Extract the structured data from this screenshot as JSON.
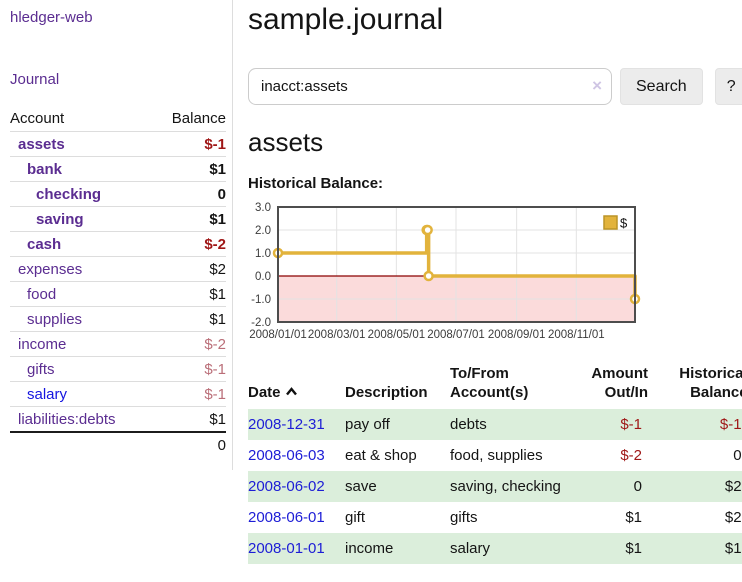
{
  "sidebar": {
    "app_title": "hledger-web",
    "journal_link": "Journal",
    "accounts": {
      "header_account": "Account",
      "header_balance": "Balance",
      "rows": [
        {
          "name": "assets",
          "indent": 1,
          "bold": true,
          "balance": "$-1",
          "neg": "strong"
        },
        {
          "name": "bank",
          "indent": 2,
          "bold": true,
          "balance": "$1"
        },
        {
          "name": "checking",
          "indent": 3,
          "bold": true,
          "balance": "0"
        },
        {
          "name": "saving",
          "indent": 3,
          "bold": true,
          "balance": "$1"
        },
        {
          "name": "cash",
          "indent": 2,
          "bold": true,
          "balance": "$-2",
          "neg": "strong"
        },
        {
          "name": "expenses",
          "indent": 1,
          "bold": false,
          "balance": "$2"
        },
        {
          "name": "food",
          "indent": 2,
          "bold": false,
          "balance": "$1"
        },
        {
          "name": "supplies",
          "indent": 2,
          "bold": false,
          "balance": "$1"
        },
        {
          "name": "income",
          "indent": 1,
          "bold": false,
          "balance": "$-2",
          "neg": "soft"
        },
        {
          "name": "gifts",
          "indent": 2,
          "bold": false,
          "balance": "$-1",
          "neg": "soft"
        },
        {
          "name": "salary",
          "indent": 2,
          "bold": false,
          "balance": "$-1",
          "neg": "soft",
          "link": "blue"
        },
        {
          "name": "liabilities:debts",
          "indent": 1,
          "bold": false,
          "balance": "$1"
        }
      ],
      "total": "0"
    }
  },
  "main": {
    "title": "sample.journal",
    "account_heading": "assets"
  },
  "search": {
    "query": "inacct:assets",
    "clear_icon": "×",
    "button_label": "Search",
    "help_label": "?"
  },
  "chart_data": {
    "type": "line",
    "step": true,
    "title": "Historical Balance:",
    "series": [
      {
        "name": "$",
        "color": "#e2b33c",
        "marker_fill": "#ffffff",
        "points": [
          [
            "2008-01-01",
            1
          ],
          [
            "2008-06-01",
            2
          ],
          [
            "2008-06-02",
            2
          ],
          [
            "2008-06-03",
            0
          ],
          [
            "2008-12-31",
            -1
          ]
        ]
      }
    ],
    "x_range": [
      "2008-01-01",
      "2008-12-31"
    ],
    "ylim": [
      -2,
      3
    ],
    "y_ticks": [
      3.0,
      2.0,
      1.0,
      0.0,
      -1.0,
      -2.0
    ],
    "x_ticks": [
      {
        "date": "2008-01-01",
        "label": "2008/01/01"
      },
      {
        "date": "2008-03-01",
        "label": "2008/03/01"
      },
      {
        "date": "2008-05-01",
        "label": "2008/05/01"
      },
      {
        "date": "2008-07-01",
        "label": "2008/07/01"
      },
      {
        "date": "2008-09-01",
        "label": "2008/09/01"
      },
      {
        "date": "2008-11-01",
        "label": "2008/11/01"
      }
    ],
    "negative_region_color": "#fbdbdb",
    "zero_line_color": "#8b0000",
    "grid": true,
    "legend_position": "top-right"
  },
  "register": {
    "headers": {
      "date": "Date",
      "description": "Description",
      "accounts": "To/From Account(s)",
      "amount": "Amount Out/In",
      "balance": "Historical Balance"
    },
    "rows": [
      {
        "date": "2008-12-31",
        "description": "pay off",
        "accounts": "debts",
        "amount": "$-1",
        "amount_neg": true,
        "balance": "$-1",
        "balance_neg": true
      },
      {
        "date": "2008-06-03",
        "description": "eat & shop",
        "accounts": "food, supplies",
        "amount": "$-2",
        "amount_neg": true,
        "balance": "0",
        "balance_neg": false
      },
      {
        "date": "2008-06-02",
        "description": "save",
        "accounts": "saving, checking",
        "amount": "0",
        "amount_neg": false,
        "balance": "$2",
        "balance_neg": false
      },
      {
        "date": "2008-06-01",
        "description": "gift",
        "accounts": "gifts",
        "amount": "$1",
        "amount_neg": false,
        "balance": "$2",
        "balance_neg": false
      },
      {
        "date": "2008-01-01",
        "description": "income",
        "accounts": "salary",
        "amount": "$1",
        "amount_neg": false,
        "balance": "$1",
        "balance_neg": false
      }
    ]
  },
  "colors": {
    "link_purple": "#5b2d91",
    "link_blue": "#1414e0",
    "negative_strong": "#9f1616",
    "negative_soft": "#ba6e78",
    "row_stripe_green": "#dbeedb",
    "chart_line_gold": "#e2b33c",
    "chart_negative_pink": "#fbdbdb",
    "chart_zero_line": "#8b0000"
  }
}
